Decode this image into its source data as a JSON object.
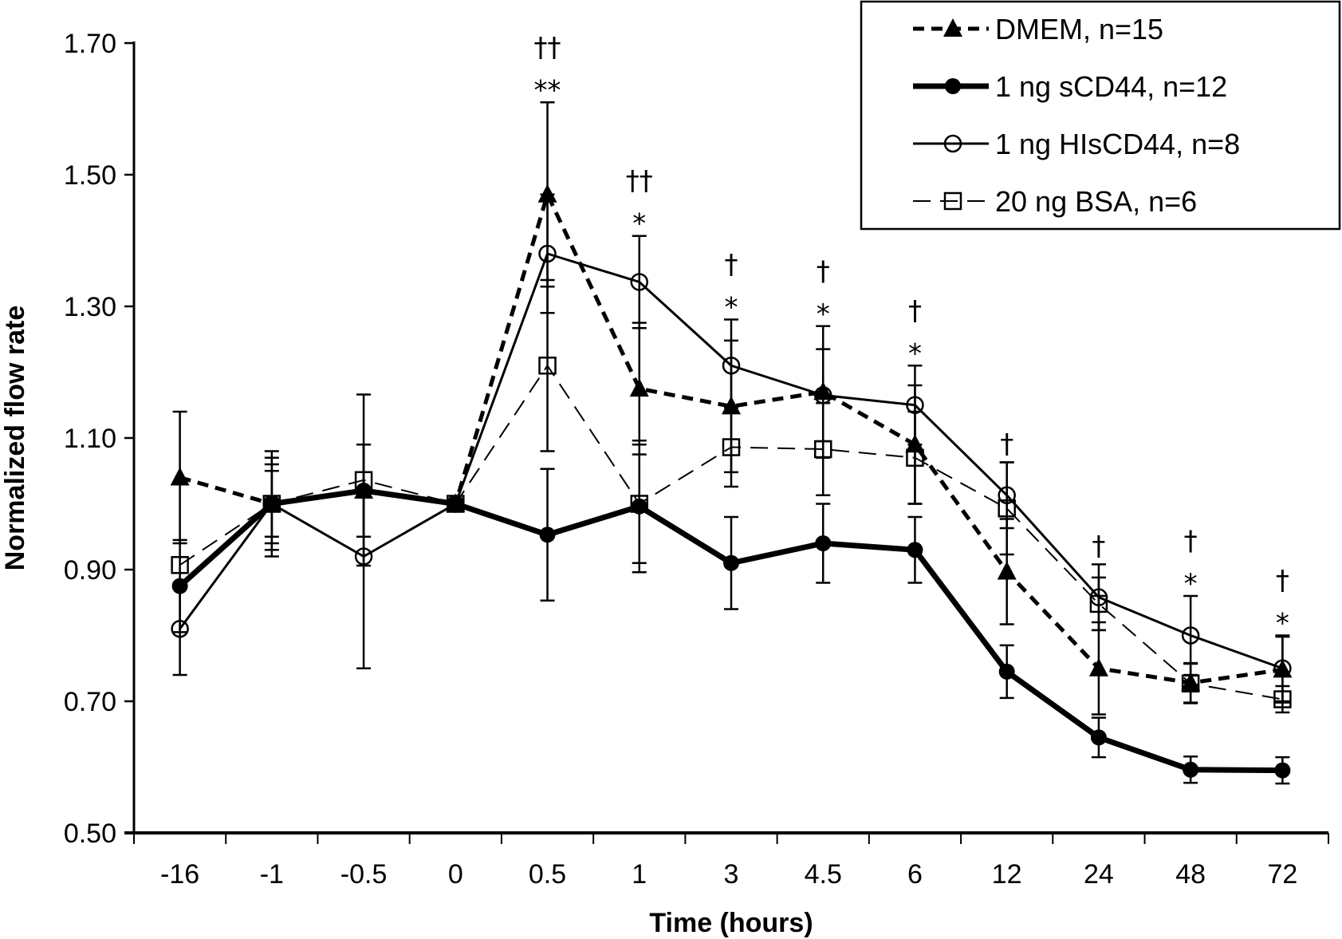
{
  "chart_data": {
    "type": "line",
    "title": "",
    "xlabel": "Time (hours)",
    "ylabel": "Normalized flow rate",
    "categories": [
      "-16",
      "-1",
      "-0.5",
      "0",
      "0.5",
      "1",
      "3",
      "4.5",
      "6",
      "12",
      "24",
      "48",
      "72"
    ],
    "ylim": [
      0.5,
      1.7
    ],
    "yticks": [
      "0.50",
      "0.70",
      "0.90",
      "1.10",
      "1.30",
      "1.50",
      "1.70"
    ],
    "ytick_values": [
      0.5,
      0.7,
      0.9,
      1.1,
      1.3,
      1.5,
      1.7
    ],
    "grid": false,
    "legend_position": "top-right",
    "series": [
      {
        "name": "DMEM, n=15",
        "marker": "filled-triangle",
        "line": "thick-dashed",
        "values": [
          1.04,
          1.0,
          1.02,
          1.0,
          1.47,
          1.175,
          1.148,
          1.17,
          1.09,
          0.897,
          0.75,
          0.728,
          0.748
        ],
        "errors": [
          0.1,
          0.07,
          0.07,
          0.0,
          0.14,
          0.1,
          0.1,
          0.1,
          0.09,
          0.08,
          0.07,
          0.03,
          0.05
        ]
      },
      {
        "name": "1 ng sCD44, n=12",
        "marker": "filled-circle",
        "line": "bold-solid",
        "values": [
          0.875,
          1.0,
          1.02,
          1.0,
          0.953,
          0.996,
          0.91,
          0.94,
          0.93,
          0.745,
          0.645,
          0.596,
          0.595
        ],
        "errors": [
          0.07,
          0.05,
          0.07,
          0.0,
          0.1,
          0.1,
          0.07,
          0.06,
          0.05,
          0.04,
          0.03,
          0.02,
          0.02
        ]
      },
      {
        "name": "1 ng HIsCD44, n=8",
        "marker": "open-circle",
        "line": "solid",
        "values": [
          0.81,
          1.0,
          0.92,
          1.0,
          1.38,
          1.337,
          1.21,
          1.165,
          1.15,
          1.013,
          0.858,
          0.8,
          0.75
        ],
        "errors": [
          0.07,
          0.08,
          0.17,
          0.0,
          0.09,
          0.07,
          0.07,
          0.07,
          0.06,
          0.05,
          0.05,
          0.06,
          0.05
        ]
      },
      {
        "name": "20 ng BSA, n=6",
        "marker": "open-square",
        "line": "thin-dashed",
        "values": [
          0.907,
          1.0,
          1.036,
          1.0,
          1.21,
          1.0,
          1.086,
          1.083,
          1.07,
          0.993,
          0.848,
          0.727,
          0.703
        ],
        "errors": [
          0.0,
          0.06,
          0.13,
          0.0,
          0.13,
          0.09,
          0.06,
          0.07,
          0.07,
          0.07,
          0.04,
          0.03,
          0.02
        ]
      }
    ],
    "annotations": [
      {
        "category": "0.5",
        "dagger": "††",
        "star": "**"
      },
      {
        "category": "1",
        "dagger": "††",
        "star": "*"
      },
      {
        "category": "3",
        "dagger": "†",
        "star": "*"
      },
      {
        "category": "4.5",
        "dagger": "†",
        "star": "*"
      },
      {
        "category": "6",
        "dagger": "†",
        "star": "*"
      },
      {
        "category": "12",
        "dagger": "†",
        "star": ""
      },
      {
        "category": "24",
        "dagger": "†",
        "star": ""
      },
      {
        "category": "48",
        "dagger": "†",
        "star": "*"
      },
      {
        "category": "72",
        "dagger": "†",
        "star": "*"
      }
    ]
  }
}
